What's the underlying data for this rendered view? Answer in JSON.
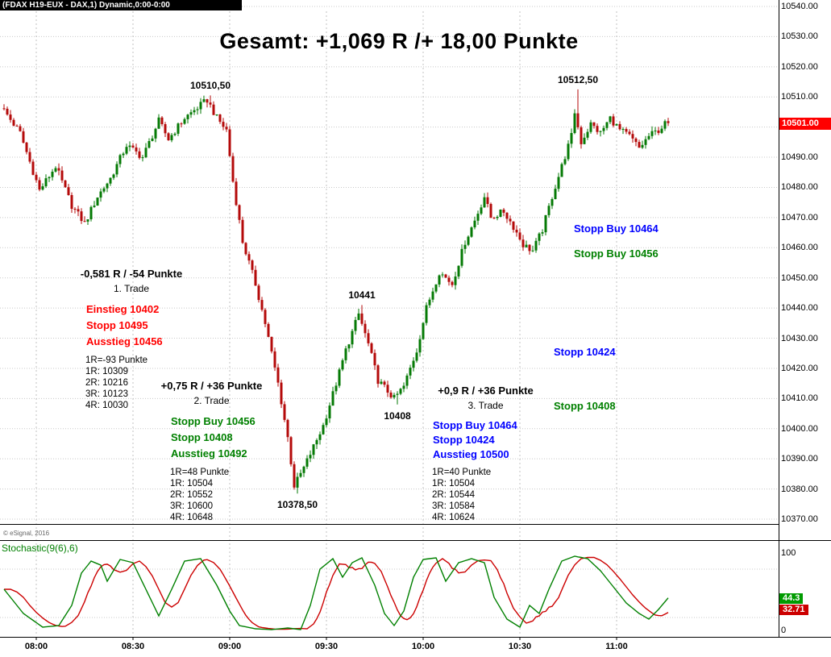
{
  "title_bar": {
    "text": "(FDAX H19-EUX - DAX,1) Dynamic,0:00-0:00"
  },
  "main_title": "Gesamt: +1,069 R /+ 18,00 Punkte",
  "copyright": "© eSignal, 2016",
  "chart_data": {
    "type": "candlestick",
    "instrument": "FDAX H19-EUX - DAX",
    "interval_minutes": 1,
    "title": "Gesamt: +1,069 R /+ 18,00 Punkte",
    "x_axis": {
      "labels": [
        "08:00",
        "08:30",
        "09:00",
        "09:30",
        "10:00",
        "10:30",
        "11:00"
      ],
      "start_time": "07:50",
      "end_time": "11:16"
    },
    "y_axis": {
      "min": 10370,
      "max": 10540,
      "tick_step": 10,
      "ticks": [
        {
          "value": 10540,
          "label": "10540.00"
        },
        {
          "value": 10530,
          "label": "10530.00"
        },
        {
          "value": 10520,
          "label": "10520.00"
        },
        {
          "value": 10510,
          "label": "10510.00"
        },
        {
          "value": 10490,
          "label": "10490.00"
        },
        {
          "value": 10480,
          "label": "10480.00"
        },
        {
          "value": 10470,
          "label": "10470.00"
        },
        {
          "value": 10460,
          "label": "10460.00"
        },
        {
          "value": 10450,
          "label": "10450.00"
        },
        {
          "value": 10440,
          "label": "10440.00"
        },
        {
          "value": 10430,
          "label": "10430.00"
        },
        {
          "value": 10420,
          "label": "10420.00"
        },
        {
          "value": 10410,
          "label": "10410.00"
        },
        {
          "value": 10400,
          "label": "10400.00"
        },
        {
          "value": 10390,
          "label": "10390.00"
        },
        {
          "value": 10380,
          "label": "10380.00"
        },
        {
          "value": 10370,
          "label": "10370.00"
        }
      ],
      "last_price": {
        "value": 10501,
        "label": "10501.00",
        "bg": "#ff0000"
      }
    },
    "colors": {
      "up": "#057a05",
      "down": "#b40a0a",
      "grid": "#c8c8c8"
    },
    "price_path_anchors": [
      [
        0,
        10507
      ],
      [
        6,
        10498
      ],
      [
        12,
        10479
      ],
      [
        17,
        10487
      ],
      [
        22,
        10474
      ],
      [
        26,
        10468
      ],
      [
        30,
        10477
      ],
      [
        34,
        10483
      ],
      [
        39,
        10494
      ],
      [
        44,
        10490
      ],
      [
        49,
        10502
      ],
      [
        52,
        10496
      ],
      [
        57,
        10503
      ],
      [
        64,
        10509
      ],
      [
        67,
        10503
      ],
      [
        70,
        10499
      ],
      [
        72,
        10482
      ],
      [
        75,
        10462
      ],
      [
        79,
        10448
      ],
      [
        82,
        10435
      ],
      [
        86,
        10415
      ],
      [
        89,
        10397
      ],
      [
        91,
        10381
      ],
      [
        94,
        10387
      ],
      [
        97,
        10394
      ],
      [
        100,
        10401
      ],
      [
        104,
        10415
      ],
      [
        107,
        10426
      ],
      [
        111,
        10438
      ],
      [
        114,
        10428
      ],
      [
        117,
        10416
      ],
      [
        122,
        10410
      ],
      [
        125,
        10414
      ],
      [
        129,
        10426
      ],
      [
        132,
        10440
      ],
      [
        136,
        10452
      ],
      [
        140,
        10448
      ],
      [
        144,
        10462
      ],
      [
        147,
        10469
      ],
      [
        150,
        10477
      ],
      [
        152,
        10470
      ],
      [
        156,
        10472
      ],
      [
        159,
        10467
      ],
      [
        162,
        10461
      ],
      [
        165,
        10459
      ],
      [
        168,
        10466
      ],
      [
        171,
        10477
      ],
      [
        174,
        10487
      ],
      [
        177,
        10497
      ],
      [
        178,
        10505
      ],
      [
        180,
        10495
      ],
      [
        183,
        10501
      ],
      [
        186,
        10498
      ],
      [
        189,
        10503
      ],
      [
        192,
        10499
      ],
      [
        195,
        10497
      ],
      [
        198,
        10493
      ],
      [
        201,
        10497
      ],
      [
        204,
        10499
      ],
      [
        206,
        10501
      ]
    ],
    "marked_extremes": [
      {
        "minute": 64,
        "kind": "high",
        "price": 10510.5,
        "label": "10510,50"
      },
      {
        "minute": 178,
        "kind": "high",
        "price": 10512.5,
        "label": "10512,50"
      },
      {
        "minute": 111,
        "kind": "high",
        "price": 10441,
        "label": "10441"
      },
      {
        "minute": 122,
        "kind": "low",
        "price": 10408,
        "label": "10408"
      },
      {
        "minute": 91,
        "kind": "low",
        "price": 10378.5,
        "label": "10378,50"
      }
    ],
    "trades": [
      {
        "result_header": "-0,581 R / -54 Punkte",
        "name": "1. Trade",
        "color": "#ff0000",
        "order_lines": [
          "Einstieg 10402",
          "Stopp 10495",
          "Ausstieg 10456"
        ],
        "risk_lines": [
          "1R=-93 Punkte",
          "1R: 10309",
          "2R: 10216",
          "3R: 10123",
          "4R: 10030"
        ]
      },
      {
        "result_header": "+0,75 R / +36 Punkte",
        "name": "2. Trade",
        "color": "#008000",
        "order_lines": [
          "Stopp Buy 10456",
          "Stopp 10408",
          "Ausstieg 10492"
        ],
        "risk_lines": [
          "1R=48 Punkte",
          "1R: 10504",
          "2R: 10552",
          "3R: 10600",
          "4R: 10648"
        ]
      },
      {
        "result_header": "+0,9 R / +36 Punkte",
        "name": "3. Trade",
        "color": "#0000ff",
        "order_lines": [
          "Stopp Buy 10464",
          "Stopp 10424",
          "Ausstieg 10500"
        ],
        "risk_lines": [
          "1R=40 Punkte",
          "1R: 10504",
          "2R: 10544",
          "3R: 10584",
          "4R: 10624"
        ]
      }
    ],
    "side_labels": [
      {
        "text": "Stopp Buy 10464",
        "color": "#0000ff"
      },
      {
        "text": "Stopp Buy 10456",
        "color": "#008000"
      },
      {
        "text": "Stopp 10424",
        "color": "#0000ff"
      },
      {
        "text": "Stopp 10408",
        "color": "#008000"
      }
    ]
  },
  "stochastic": {
    "label": "Stochastic(9(6),6)",
    "axis": {
      "top_label": "100",
      "bottom_label": "0"
    },
    "k": {
      "color": "#008000",
      "last_value": "44.3"
    },
    "d": {
      "color": "#cc0000",
      "last_value": "32.71"
    },
    "ref_lines": [
      80,
      20
    ],
    "k_path_anchors": [
      [
        0,
        55
      ],
      [
        6,
        25
      ],
      [
        12,
        8
      ],
      [
        17,
        10
      ],
      [
        21,
        35
      ],
      [
        24,
        75
      ],
      [
        27,
        90
      ],
      [
        30,
        85
      ],
      [
        32,
        65
      ],
      [
        36,
        92
      ],
      [
        40,
        88
      ],
      [
        44,
        55
      ],
      [
        48,
        22
      ],
      [
        52,
        55
      ],
      [
        56,
        90
      ],
      [
        61,
        93
      ],
      [
        66,
        60
      ],
      [
        70,
        28
      ],
      [
        73,
        10
      ],
      [
        78,
        6
      ],
      [
        83,
        5
      ],
      [
        88,
        7
      ],
      [
        92,
        5
      ],
      [
        95,
        35
      ],
      [
        98,
        80
      ],
      [
        102,
        93
      ],
      [
        105,
        70
      ],
      [
        108,
        88
      ],
      [
        111,
        94
      ],
      [
        115,
        60
      ],
      [
        118,
        25
      ],
      [
        121,
        10
      ],
      [
        124,
        28
      ],
      [
        127,
        70
      ],
      [
        130,
        92
      ],
      [
        134,
        94
      ],
      [
        137,
        65
      ],
      [
        141,
        88
      ],
      [
        145,
        93
      ],
      [
        149,
        88
      ],
      [
        152,
        45
      ],
      [
        156,
        18
      ],
      [
        160,
        8
      ],
      [
        163,
        35
      ],
      [
        166,
        25
      ],
      [
        169,
        55
      ],
      [
        173,
        90
      ],
      [
        177,
        96
      ],
      [
        181,
        93
      ],
      [
        185,
        78
      ],
      [
        189,
        58
      ],
      [
        193,
        38
      ],
      [
        197,
        25
      ],
      [
        200,
        18
      ],
      [
        203,
        30
      ],
      [
        206,
        44.3
      ]
    ]
  }
}
